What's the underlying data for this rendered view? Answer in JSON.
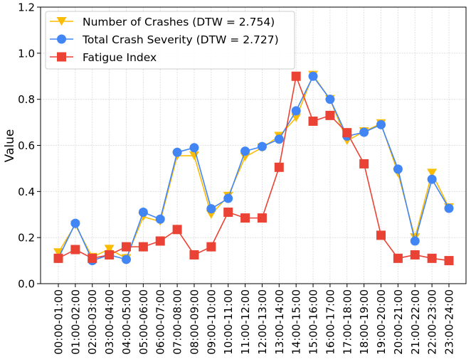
{
  "chart_data": {
    "type": "line",
    "title": "",
    "xlabel": "",
    "ylabel": "Value",
    "ylim": [
      0,
      1.2
    ],
    "yticks": [
      "0.0",
      "0.2",
      "0.4",
      "0.6",
      "0.8",
      "1.0",
      "1.2"
    ],
    "grid": true,
    "legend_position": "top-left",
    "categories": [
      "00:00-01:00",
      "01:00-02:00",
      "02:00-03:00",
      "03:00-04:00",
      "04:00-05:00",
      "05:00-06:00",
      "06:00-07:00",
      "07:00-08:00",
      "08:00-09:00",
      "09:00-10:00",
      "10:00-11:00",
      "11:00-12:00",
      "12:00-13:00",
      "13:00-14:00",
      "14:00-15:00",
      "15:00-16:00",
      "16:00-17:00",
      "17:00-18:00",
      "18:00-19:00",
      "19:00-20:00",
      "20:00-21:00",
      "21:00-22:00",
      "22:00-23:00",
      "23:00-24:00"
    ],
    "series": [
      {
        "name": "Number of Crashes (DTW = 2.754)",
        "color": "#FBBC05",
        "marker": "triangle-down",
        "values": [
          0.135,
          0.255,
          0.115,
          0.15,
          0.11,
          0.29,
          0.27,
          0.555,
          0.555,
          0.3,
          0.38,
          0.55,
          0.59,
          0.64,
          0.72,
          0.905,
          0.8,
          0.62,
          0.66,
          0.695,
          0.48,
          0.2,
          0.48,
          0.33
        ]
      },
      {
        "name": "Total Crash Severity (DTW = 2.727)",
        "color": "#4285F4",
        "marker": "circle",
        "values": [
          0.11,
          0.262,
          0.1,
          0.125,
          0.105,
          0.31,
          0.28,
          0.57,
          0.59,
          0.325,
          0.37,
          0.575,
          0.595,
          0.627,
          0.75,
          0.9,
          0.8,
          0.64,
          0.657,
          0.69,
          0.497,
          0.185,
          0.453,
          0.327
        ]
      },
      {
        "name": "Fatigue Index",
        "color": "#EA4335",
        "marker": "square",
        "values": [
          0.11,
          0.148,
          0.11,
          0.125,
          0.16,
          0.16,
          0.185,
          0.235,
          0.125,
          0.16,
          0.31,
          0.285,
          0.285,
          0.505,
          0.9,
          0.705,
          0.73,
          0.655,
          0.52,
          0.21,
          0.11,
          0.125,
          0.11,
          0.1
        ]
      }
    ]
  }
}
